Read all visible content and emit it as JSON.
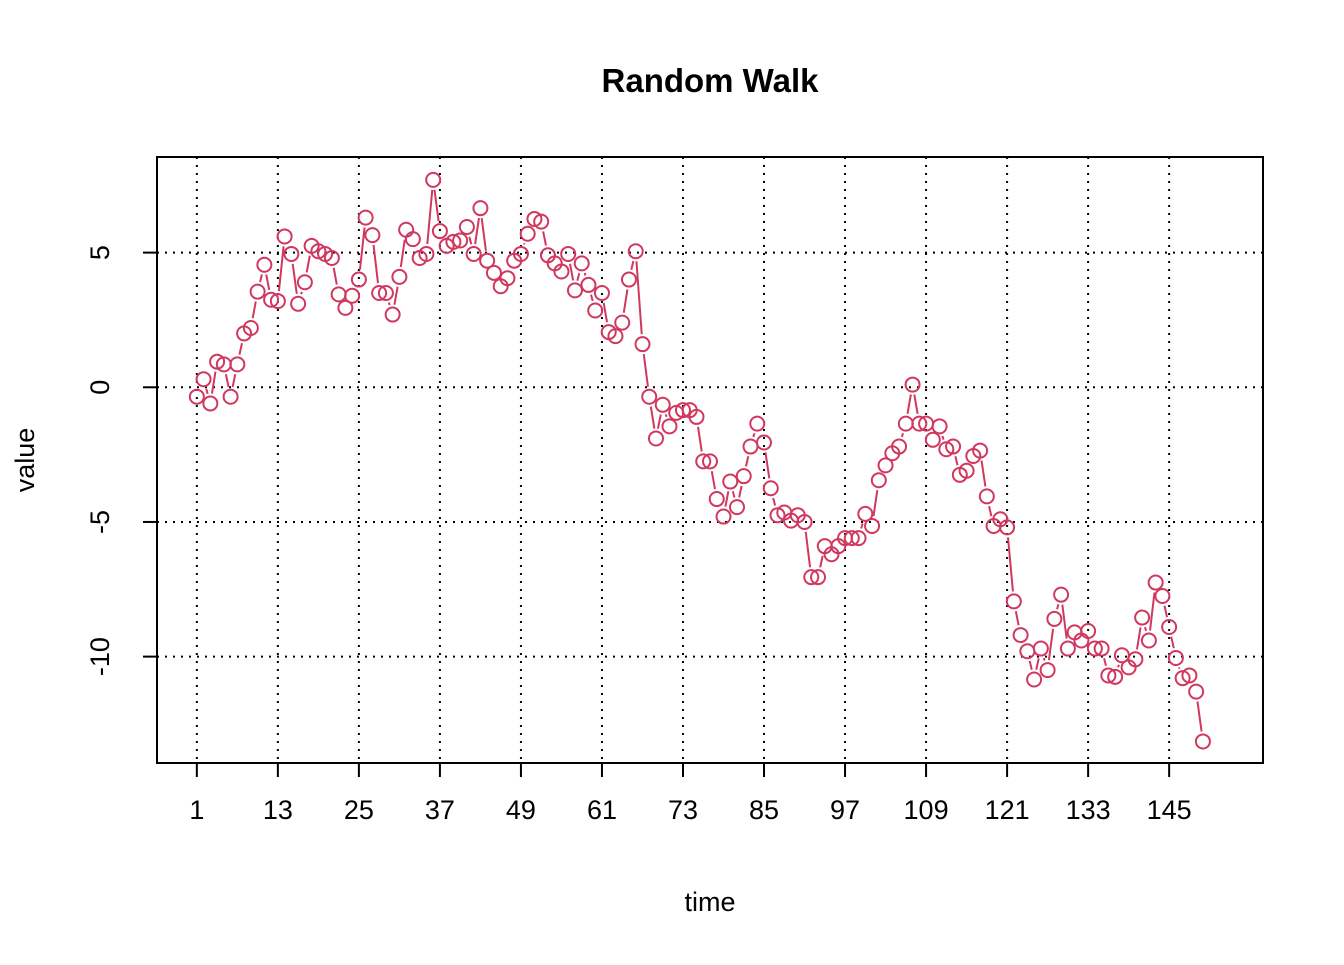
{
  "chart_data": {
    "type": "line",
    "title": "Random Walk",
    "xlabel": "time",
    "ylabel": "value",
    "xlim": [
      -4.9,
      158.9
    ],
    "ylim": [
      -13.95,
      8.55
    ],
    "x_ticks": [
      1,
      13,
      25,
      37,
      49,
      61,
      73,
      85,
      97,
      109,
      121,
      133,
      145
    ],
    "y_ticks": [
      -10,
      -5,
      0,
      5
    ],
    "grid": true,
    "grid_style": "dotted",
    "series": [
      {
        "color": "#d1385e",
        "marker": "open-circle",
        "x": [
          1,
          2,
          3,
          4,
          5,
          6,
          7,
          8,
          9,
          10,
          11,
          12,
          13,
          14,
          15,
          16,
          17,
          18,
          19,
          20,
          21,
          22,
          23,
          24,
          25,
          26,
          27,
          28,
          29,
          30,
          31,
          32,
          33,
          34,
          35,
          36,
          37,
          38,
          39,
          40,
          41,
          42,
          43,
          44,
          45,
          46,
          47,
          48,
          49,
          50,
          51,
          52,
          53,
          54,
          55,
          56,
          57,
          58,
          59,
          60,
          61,
          62,
          63,
          64,
          65,
          66,
          67,
          68,
          69,
          70,
          71,
          72,
          73,
          74,
          75,
          76,
          77,
          78,
          79,
          80,
          81,
          82,
          83,
          84,
          85,
          86,
          87,
          88,
          89,
          90,
          91,
          92,
          93,
          94,
          95,
          96,
          97,
          98,
          99,
          100,
          101,
          102,
          103,
          104,
          105,
          106,
          107,
          108,
          109,
          110,
          111,
          112,
          113,
          114,
          115,
          116,
          117,
          118,
          119,
          120,
          121,
          122,
          123,
          124,
          125,
          126,
          127,
          128,
          129,
          130,
          131,
          132,
          133,
          134,
          135,
          136,
          137,
          138,
          139,
          140,
          141,
          142,
          143,
          144,
          145,
          146,
          147,
          148,
          149,
          150
        ],
        "values": [
          -0.35,
          0.3,
          -0.6,
          0.95,
          0.85,
          -0.35,
          0.85,
          2.0,
          2.2,
          3.55,
          4.55,
          3.25,
          3.2,
          5.6,
          4.95,
          3.1,
          3.9,
          5.25,
          5.05,
          4.95,
          4.8,
          3.45,
          2.95,
          3.4,
          4.0,
          6.3,
          5.65,
          3.5,
          3.5,
          2.7,
          4.1,
          5.85,
          5.5,
          4.8,
          4.95,
          7.7,
          5.8,
          5.25,
          5.4,
          5.45,
          5.95,
          4.95,
          6.65,
          4.7,
          4.25,
          3.75,
          4.05,
          4.7,
          4.95,
          5.7,
          6.25,
          6.15,
          4.9,
          4.6,
          4.3,
          4.95,
          3.6,
          4.6,
          3.8,
          2.85,
          3.5,
          2.05,
          1.9,
          2.4,
          4.0,
          5.05,
          1.6,
          -0.35,
          -1.9,
          -0.65,
          -1.45,
          -0.95,
          -0.85,
          -0.85,
          -1.1,
          -2.75,
          -2.75,
          -4.15,
          -4.8,
          -3.5,
          -4.45,
          -3.3,
          -2.2,
          -1.35,
          -2.05,
          -3.75,
          -4.75,
          -4.65,
          -4.95,
          -4.75,
          -5.0,
          -7.05,
          -7.05,
          -5.9,
          -6.2,
          -5.9,
          -5.6,
          -5.6,
          -5.6,
          -4.7,
          -5.15,
          -3.45,
          -2.9,
          -2.45,
          -2.2,
          -1.35,
          0.1,
          -1.35,
          -1.35,
          -1.95,
          -1.45,
          -2.3,
          -2.2,
          -3.25,
          -3.1,
          -2.55,
          -2.35,
          -4.05,
          -5.15,
          -4.9,
          -5.2,
          -7.95,
          -9.2,
          -9.8,
          -10.85,
          -9.7,
          -10.5,
          -8.6,
          -7.7,
          -9.7,
          -9.1,
          -9.4,
          -9.05,
          -9.7,
          -9.7,
          -10.7,
          -10.75,
          -9.95,
          -10.4,
          -10.1,
          -8.55,
          -9.4,
          -7.25,
          -7.75,
          -8.9,
          -10.05,
          -10.8,
          -10.7,
          -11.3,
          -13.15
        ]
      }
    ]
  }
}
